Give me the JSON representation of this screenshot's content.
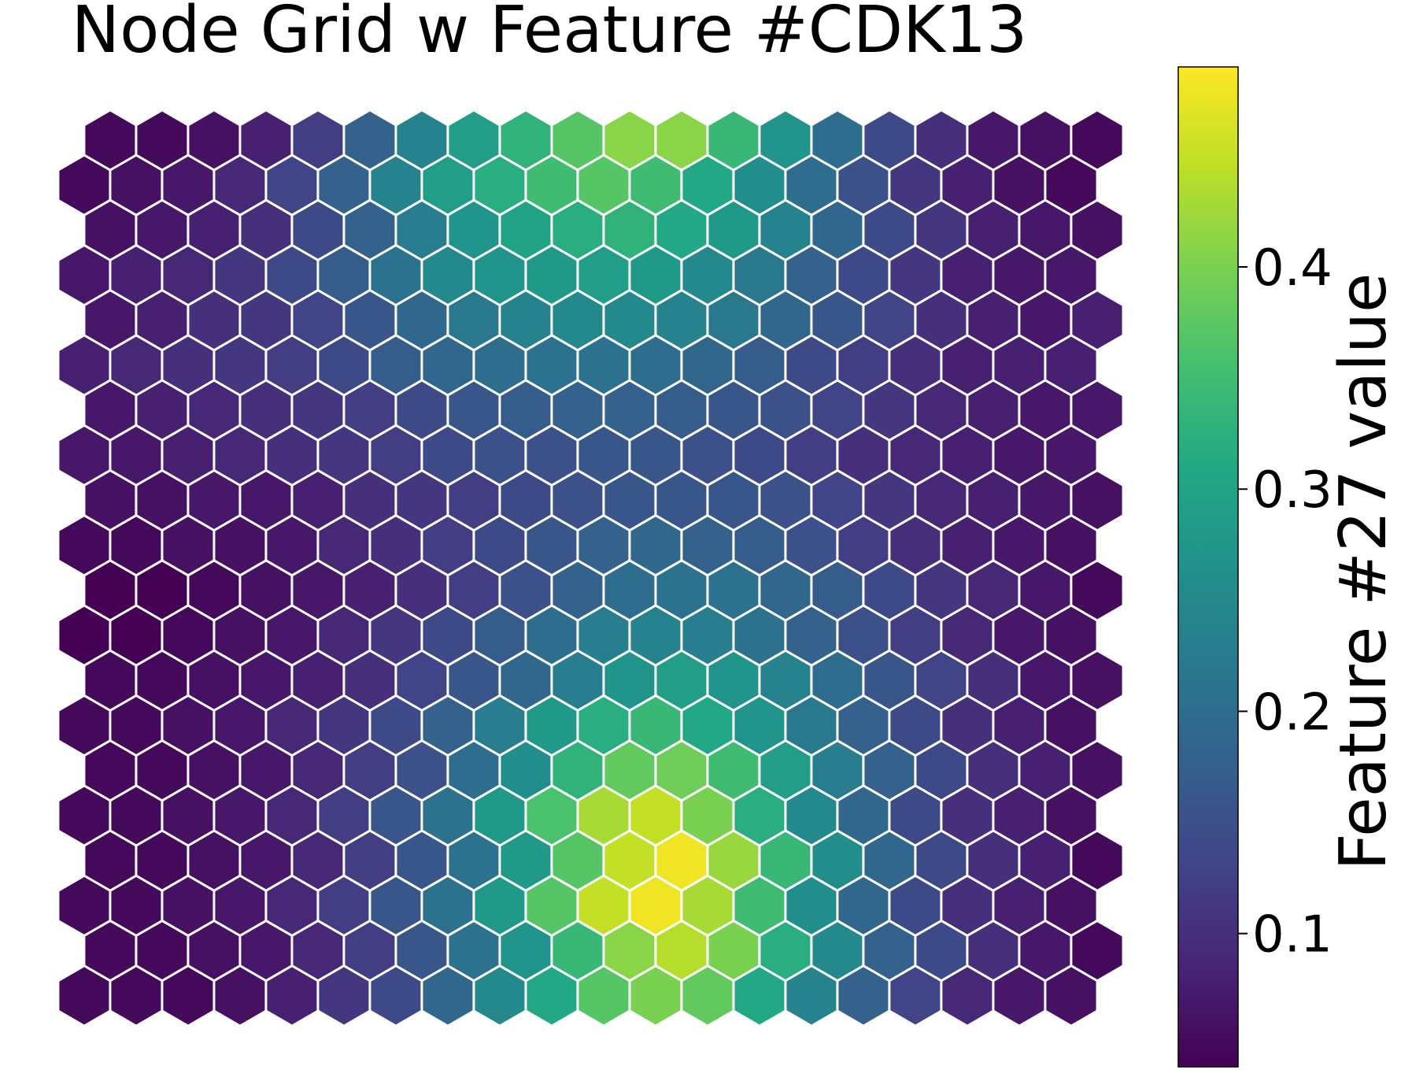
{
  "chart_data": {
    "type": "heatmap",
    "subtype": "hexagonal-grid",
    "title": "Node Grid w Feature #CDK13",
    "colorbar": {
      "label": "Feature #27 value",
      "ticks": [
        "0.1",
        "0.2",
        "0.3",
        "0.4"
      ],
      "tick_values": [
        0.1,
        0.2,
        0.3,
        0.4
      ],
      "range": [
        0.04,
        0.49
      ],
      "colormap": "viridis",
      "placement": "right"
    },
    "grid": {
      "rows": 20,
      "cols": 20,
      "row_order": "top-to-bottom",
      "odd_rows_offset": "right"
    },
    "values": [
      [
        0.05,
        0.05,
        0.06,
        0.08,
        0.12,
        0.18,
        0.24,
        0.29,
        0.33,
        0.37,
        0.41,
        0.41,
        0.34,
        0.27,
        0.2,
        0.14,
        0.1,
        0.07,
        0.06,
        0.05
      ],
      [
        0.05,
        0.06,
        0.07,
        0.09,
        0.13,
        0.18,
        0.24,
        0.29,
        0.32,
        0.35,
        0.37,
        0.35,
        0.31,
        0.26,
        0.2,
        0.15,
        0.11,
        0.08,
        0.06,
        0.05
      ],
      [
        0.06,
        0.07,
        0.08,
        0.1,
        0.14,
        0.18,
        0.23,
        0.27,
        0.3,
        0.32,
        0.33,
        0.31,
        0.28,
        0.24,
        0.19,
        0.14,
        0.11,
        0.08,
        0.07,
        0.06
      ],
      [
        0.07,
        0.08,
        0.09,
        0.11,
        0.14,
        0.17,
        0.21,
        0.25,
        0.27,
        0.28,
        0.29,
        0.28,
        0.25,
        0.22,
        0.18,
        0.14,
        0.11,
        0.08,
        0.07,
        0.07
      ],
      [
        0.07,
        0.08,
        0.1,
        0.11,
        0.13,
        0.16,
        0.19,
        0.22,
        0.24,
        0.25,
        0.25,
        0.24,
        0.22,
        0.19,
        0.16,
        0.13,
        0.1,
        0.08,
        0.07,
        0.08
      ],
      [
        0.08,
        0.09,
        0.1,
        0.11,
        0.12,
        0.14,
        0.17,
        0.19,
        0.2,
        0.21,
        0.21,
        0.2,
        0.19,
        0.17,
        0.14,
        0.12,
        0.1,
        0.08,
        0.08,
        0.08
      ],
      [
        0.07,
        0.08,
        0.09,
        0.1,
        0.11,
        0.12,
        0.14,
        0.16,
        0.17,
        0.18,
        0.18,
        0.17,
        0.16,
        0.15,
        0.13,
        0.11,
        0.09,
        0.08,
        0.07,
        0.07
      ],
      [
        0.07,
        0.07,
        0.08,
        0.09,
        0.1,
        0.11,
        0.12,
        0.14,
        0.15,
        0.15,
        0.16,
        0.16,
        0.15,
        0.14,
        0.12,
        0.1,
        0.09,
        0.08,
        0.07,
        0.07
      ],
      [
        0.06,
        0.06,
        0.07,
        0.07,
        0.08,
        0.1,
        0.11,
        0.12,
        0.14,
        0.15,
        0.16,
        0.16,
        0.16,
        0.15,
        0.13,
        0.11,
        0.09,
        0.08,
        0.07,
        0.06
      ],
      [
        0.05,
        0.05,
        0.06,
        0.06,
        0.07,
        0.09,
        0.1,
        0.12,
        0.14,
        0.16,
        0.18,
        0.19,
        0.18,
        0.17,
        0.15,
        0.12,
        0.1,
        0.08,
        0.07,
        0.06
      ],
      [
        0.04,
        0.04,
        0.05,
        0.06,
        0.07,
        0.08,
        0.1,
        0.12,
        0.15,
        0.18,
        0.2,
        0.21,
        0.21,
        0.19,
        0.17,
        0.14,
        0.11,
        0.09,
        0.07,
        0.05
      ],
      [
        0.04,
        0.04,
        0.05,
        0.06,
        0.07,
        0.09,
        0.11,
        0.14,
        0.17,
        0.2,
        0.23,
        0.24,
        0.23,
        0.21,
        0.18,
        0.15,
        0.12,
        0.09,
        0.07,
        0.06
      ],
      [
        0.05,
        0.05,
        0.06,
        0.07,
        0.08,
        0.1,
        0.13,
        0.16,
        0.19,
        0.23,
        0.27,
        0.29,
        0.27,
        0.24,
        0.2,
        0.16,
        0.13,
        0.1,
        0.07,
        0.06
      ],
      [
        0.05,
        0.05,
        0.06,
        0.07,
        0.09,
        0.11,
        0.14,
        0.18,
        0.23,
        0.28,
        0.32,
        0.34,
        0.31,
        0.27,
        0.22,
        0.18,
        0.14,
        0.1,
        0.08,
        0.06
      ],
      [
        0.05,
        0.05,
        0.06,
        0.07,
        0.09,
        0.12,
        0.15,
        0.2,
        0.26,
        0.33,
        0.38,
        0.39,
        0.35,
        0.29,
        0.23,
        0.18,
        0.14,
        0.1,
        0.08,
        0.06
      ],
      [
        0.05,
        0.05,
        0.06,
        0.07,
        0.09,
        0.12,
        0.16,
        0.21,
        0.28,
        0.36,
        0.43,
        0.45,
        0.4,
        0.32,
        0.25,
        0.19,
        0.14,
        0.1,
        0.08,
        0.06
      ],
      [
        0.05,
        0.05,
        0.06,
        0.07,
        0.09,
        0.12,
        0.16,
        0.21,
        0.28,
        0.37,
        0.45,
        0.48,
        0.42,
        0.34,
        0.26,
        0.19,
        0.14,
        0.1,
        0.08,
        0.05
      ],
      [
        0.05,
        0.05,
        0.06,
        0.07,
        0.09,
        0.12,
        0.16,
        0.21,
        0.28,
        0.37,
        0.45,
        0.48,
        0.43,
        0.35,
        0.26,
        0.19,
        0.14,
        0.1,
        0.08,
        0.06
      ],
      [
        0.05,
        0.05,
        0.06,
        0.07,
        0.09,
        0.12,
        0.16,
        0.21,
        0.27,
        0.34,
        0.41,
        0.44,
        0.4,
        0.32,
        0.25,
        0.18,
        0.14,
        0.1,
        0.07,
        0.05
      ],
      [
        0.05,
        0.05,
        0.05,
        0.06,
        0.08,
        0.11,
        0.14,
        0.19,
        0.25,
        0.31,
        0.37,
        0.4,
        0.38,
        0.31,
        0.24,
        0.18,
        0.13,
        0.09,
        0.07,
        0.06
      ]
    ]
  }
}
